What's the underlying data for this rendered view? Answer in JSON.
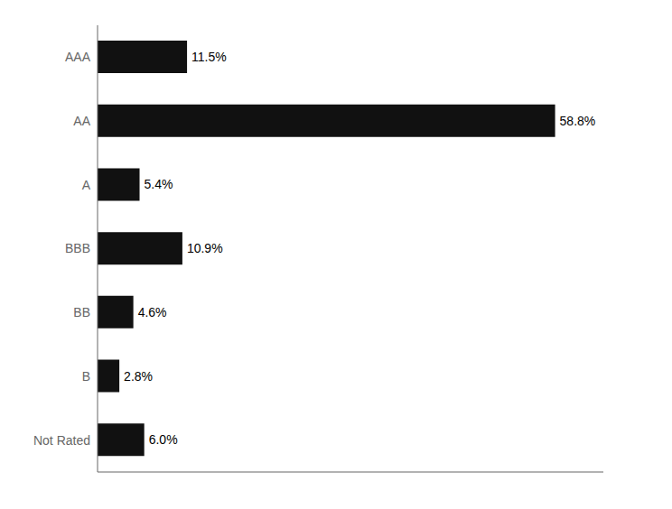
{
  "chart_data": {
    "type": "bar",
    "orientation": "horizontal",
    "categories": [
      "AAA",
      "AA",
      "A",
      "BBB",
      "BB",
      "B",
      "Not Rated"
    ],
    "values": [
      11.5,
      58.8,
      5.4,
      10.9,
      4.6,
      2.8,
      6.0
    ],
    "value_labels": [
      "11.5%",
      "58.8%",
      "5.4%",
      "10.9%",
      "4.6%",
      "2.8%",
      "6.0%"
    ],
    "color": "#111111",
    "xlim": [
      0,
      65
    ],
    "grid": false,
    "tick_labels": "y",
    "data_labels": true
  }
}
